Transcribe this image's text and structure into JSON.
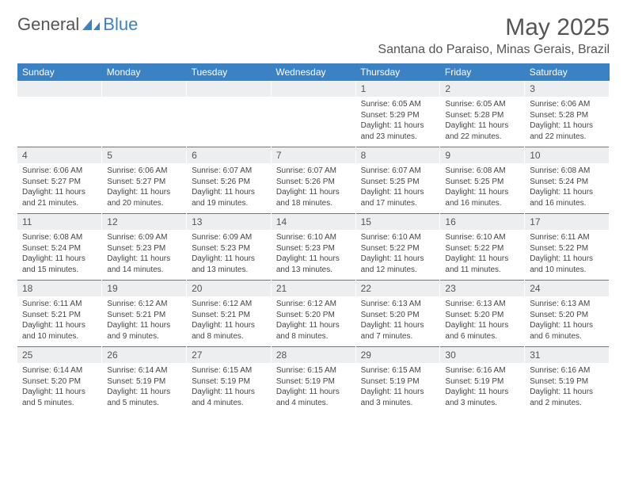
{
  "logo": {
    "text1": "General",
    "text2": "Blue"
  },
  "title": "May 2025",
  "location": "Santana do Paraiso, Minas Gerais, Brazil",
  "colors": {
    "header_bg": "#3b82c4",
    "header_fg": "#ffffff",
    "daynum_bg": "#eceef0",
    "text": "#444444",
    "rule": "#3b82c4"
  },
  "dayHeaders": [
    "Sunday",
    "Monday",
    "Tuesday",
    "Wednesday",
    "Thursday",
    "Friday",
    "Saturday"
  ],
  "weeks": [
    [
      null,
      null,
      null,
      null,
      {
        "n": "1",
        "sr": "6:05 AM",
        "ss": "5:29 PM",
        "dl": "11 hours and 23 minutes."
      },
      {
        "n": "2",
        "sr": "6:05 AM",
        "ss": "5:28 PM",
        "dl": "11 hours and 22 minutes."
      },
      {
        "n": "3",
        "sr": "6:06 AM",
        "ss": "5:28 PM",
        "dl": "11 hours and 22 minutes."
      }
    ],
    [
      {
        "n": "4",
        "sr": "6:06 AM",
        "ss": "5:27 PM",
        "dl": "11 hours and 21 minutes."
      },
      {
        "n": "5",
        "sr": "6:06 AM",
        "ss": "5:27 PM",
        "dl": "11 hours and 20 minutes."
      },
      {
        "n": "6",
        "sr": "6:07 AM",
        "ss": "5:26 PM",
        "dl": "11 hours and 19 minutes."
      },
      {
        "n": "7",
        "sr": "6:07 AM",
        "ss": "5:26 PM",
        "dl": "11 hours and 18 minutes."
      },
      {
        "n": "8",
        "sr": "6:07 AM",
        "ss": "5:25 PM",
        "dl": "11 hours and 17 minutes."
      },
      {
        "n": "9",
        "sr": "6:08 AM",
        "ss": "5:25 PM",
        "dl": "11 hours and 16 minutes."
      },
      {
        "n": "10",
        "sr": "6:08 AM",
        "ss": "5:24 PM",
        "dl": "11 hours and 16 minutes."
      }
    ],
    [
      {
        "n": "11",
        "sr": "6:08 AM",
        "ss": "5:24 PM",
        "dl": "11 hours and 15 minutes."
      },
      {
        "n": "12",
        "sr": "6:09 AM",
        "ss": "5:23 PM",
        "dl": "11 hours and 14 minutes."
      },
      {
        "n": "13",
        "sr": "6:09 AM",
        "ss": "5:23 PM",
        "dl": "11 hours and 13 minutes."
      },
      {
        "n": "14",
        "sr": "6:10 AM",
        "ss": "5:23 PM",
        "dl": "11 hours and 13 minutes."
      },
      {
        "n": "15",
        "sr": "6:10 AM",
        "ss": "5:22 PM",
        "dl": "11 hours and 12 minutes."
      },
      {
        "n": "16",
        "sr": "6:10 AM",
        "ss": "5:22 PM",
        "dl": "11 hours and 11 minutes."
      },
      {
        "n": "17",
        "sr": "6:11 AM",
        "ss": "5:22 PM",
        "dl": "11 hours and 10 minutes."
      }
    ],
    [
      {
        "n": "18",
        "sr": "6:11 AM",
        "ss": "5:21 PM",
        "dl": "11 hours and 10 minutes."
      },
      {
        "n": "19",
        "sr": "6:12 AM",
        "ss": "5:21 PM",
        "dl": "11 hours and 9 minutes."
      },
      {
        "n": "20",
        "sr": "6:12 AM",
        "ss": "5:21 PM",
        "dl": "11 hours and 8 minutes."
      },
      {
        "n": "21",
        "sr": "6:12 AM",
        "ss": "5:20 PM",
        "dl": "11 hours and 8 minutes."
      },
      {
        "n": "22",
        "sr": "6:13 AM",
        "ss": "5:20 PM",
        "dl": "11 hours and 7 minutes."
      },
      {
        "n": "23",
        "sr": "6:13 AM",
        "ss": "5:20 PM",
        "dl": "11 hours and 6 minutes."
      },
      {
        "n": "24",
        "sr": "6:13 AM",
        "ss": "5:20 PM",
        "dl": "11 hours and 6 minutes."
      }
    ],
    [
      {
        "n": "25",
        "sr": "6:14 AM",
        "ss": "5:20 PM",
        "dl": "11 hours and 5 minutes."
      },
      {
        "n": "26",
        "sr": "6:14 AM",
        "ss": "5:19 PM",
        "dl": "11 hours and 5 minutes."
      },
      {
        "n": "27",
        "sr": "6:15 AM",
        "ss": "5:19 PM",
        "dl": "11 hours and 4 minutes."
      },
      {
        "n": "28",
        "sr": "6:15 AM",
        "ss": "5:19 PM",
        "dl": "11 hours and 4 minutes."
      },
      {
        "n": "29",
        "sr": "6:15 AM",
        "ss": "5:19 PM",
        "dl": "11 hours and 3 minutes."
      },
      {
        "n": "30",
        "sr": "6:16 AM",
        "ss": "5:19 PM",
        "dl": "11 hours and 3 minutes."
      },
      {
        "n": "31",
        "sr": "6:16 AM",
        "ss": "5:19 PM",
        "dl": "11 hours and 2 minutes."
      }
    ]
  ],
  "labels": {
    "sunrise": "Sunrise: ",
    "sunset": "Sunset: ",
    "daylight": "Daylight: "
  }
}
